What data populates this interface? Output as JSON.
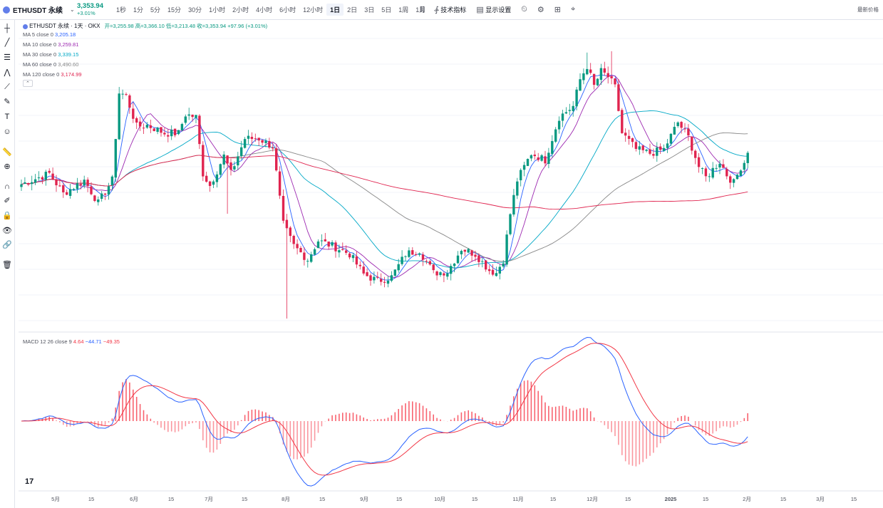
{
  "header": {
    "symbol": "ETHUSDT 永续",
    "price": "3,353.94",
    "change": "+3.01%",
    "timeframes": [
      "1秒",
      "1分",
      "5分",
      "15分",
      "30分",
      "1小时",
      "2小时",
      "4小时",
      "6小时",
      "12小时",
      "1日",
      "2日",
      "3日",
      "5日",
      "1周",
      "1月"
    ],
    "active_timeframe": "1日",
    "indicators_label": "技术指标",
    "display_label": "显示设置",
    "right_label": "最新价格",
    "colors": {
      "up": "#089981",
      "down": "#f23645",
      "accent": "#2962ff"
    }
  },
  "toolbar": {
    "icons": [
      "crosshair-icon",
      "trendline-icon",
      "horizontal-lines-icon",
      "pattern-icon",
      "fib-icon",
      "brush-icon",
      "text-icon",
      "emoji-icon",
      "ruler-icon",
      "zoom-in-icon",
      "magnet-icon",
      "pencil-lock-icon",
      "lock-icon",
      "eye-icon",
      "link-icon",
      "trash-icon"
    ]
  },
  "legend": {
    "title": "ETHUSDT 永续 · 1天 · OKX",
    "ohlc": "开=3,255.98  高=3,366.10  低=3,213.48  收=3,353.94  +97.96 (+3.01%)",
    "ma": [
      {
        "label": "MA 5 close 0",
        "value": "3,205.18",
        "color": "#2962ff"
      },
      {
        "label": "MA 10 close 0",
        "value": "3,259.81",
        "color": "#9c27b0"
      },
      {
        "label": "MA 30 close 0",
        "value": "3,339.15",
        "color": "#00a8c6"
      },
      {
        "label": "MA 60 close 0",
        "value": "3,490.60",
        "color": "#888888"
      },
      {
        "label": "MA 120 close 0",
        "value": "3,174.99",
        "color": "#e0244f"
      }
    ],
    "macd_label": "MACD 12 26 close 9",
    "macd_values": [
      {
        "value": "4.64",
        "color": "#f23645"
      },
      {
        "value": "−44.71",
        "color": "#2962ff"
      },
      {
        "value": "−49.35",
        "color": "#f23645"
      }
    ]
  },
  "chart_data": {
    "type": "candlestick",
    "x_labels": [
      "5月",
      "15",
      "6月",
      "15",
      "7月",
      "15",
      "8月",
      "15",
      "9月",
      "15",
      "10月",
      "15",
      "11月",
      "15",
      "12月",
      "15",
      "2025",
      "15",
      "2月",
      "15",
      "3月",
      "15"
    ],
    "anchors": [
      [
        0,
        3120
      ],
      [
        8,
        3200
      ],
      [
        12,
        3050
      ],
      [
        18,
        3150
      ],
      [
        22,
        2980
      ],
      [
        26,
        3150
      ],
      [
        28,
        3800
      ],
      [
        30,
        3780
      ],
      [
        33,
        3550
      ],
      [
        36,
        3560
      ],
      [
        41,
        3500
      ],
      [
        45,
        3500
      ],
      [
        47,
        3640
      ],
      [
        50,
        3620
      ],
      [
        52,
        3200
      ],
      [
        54,
        3110
      ],
      [
        58,
        3330
      ],
      [
        60,
        3200
      ],
      [
        64,
        3460
      ],
      [
        68,
        3460
      ],
      [
        72,
        3400
      ],
      [
        75,
        2820
      ],
      [
        78,
        2660
      ],
      [
        82,
        2560
      ],
      [
        85,
        2700
      ],
      [
        90,
        2650
      ],
      [
        94,
        2600
      ],
      [
        98,
        2450
      ],
      [
        102,
        2400
      ],
      [
        106,
        2430
      ],
      [
        110,
        2600
      ],
      [
        114,
        2630
      ],
      [
        118,
        2460
      ],
      [
        122,
        2470
      ],
      [
        126,
        2640
      ],
      [
        130,
        2600
      ],
      [
        134,
        2480
      ],
      [
        136,
        2460
      ],
      [
        138,
        2560
      ],
      [
        140,
        2900
      ],
      [
        142,
        3150
      ],
      [
        146,
        3350
      ],
      [
        150,
        3300
      ],
      [
        154,
        3620
      ],
      [
        158,
        3700
      ],
      [
        160,
        3900
      ],
      [
        162,
        4000
      ],
      [
        164,
        3850
      ],
      [
        166,
        3960
      ],
      [
        168,
        3920
      ],
      [
        170,
        3840
      ],
      [
        172,
        3500
      ],
      [
        176,
        3380
      ],
      [
        180,
        3350
      ],
      [
        184,
        3380
      ],
      [
        188,
        3580
      ],
      [
        191,
        3470
      ],
      [
        194,
        3250
      ],
      [
        196,
        3170
      ],
      [
        200,
        3290
      ],
      [
        202,
        3190
      ],
      [
        204,
        3130
      ],
      [
        206,
        3250
      ],
      [
        208,
        3320
      ]
    ],
    "ma_periods": [
      5,
      10,
      30,
      60,
      120
    ],
    "last_close": 3353.94
  }
}
